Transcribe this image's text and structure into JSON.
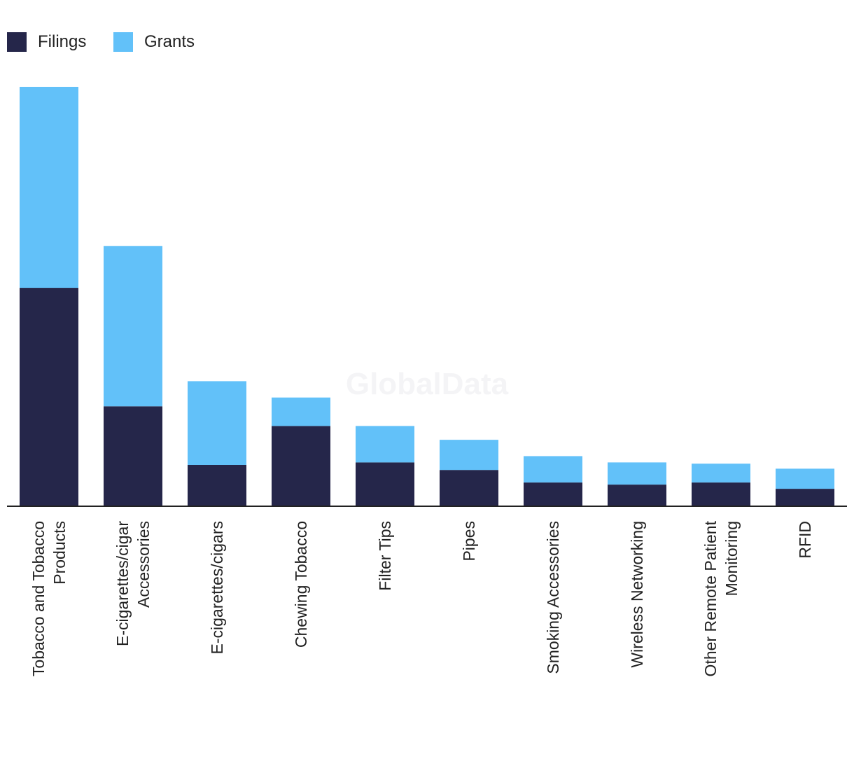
{
  "watermark": "GlobalData",
  "chart_data": {
    "type": "bar",
    "stacked": true,
    "orientation": "vertical",
    "title": "",
    "xlabel": "",
    "ylabel": "",
    "legend_position": "top-left",
    "grid": false,
    "y_axis_shown": false,
    "ylim": [
      0,
      100
    ],
    "categories": [
      "Tobacco and Tobacco Products",
      "E-cigarettes/cigar Accessories",
      "E-cigarettes/cigars",
      "Chewing Tobacco",
      "Filter Tips",
      "Pipes",
      "Smoking Accessories",
      "Wireless Networking",
      "Other Remote Patient Monitoring",
      "RFID"
    ],
    "category_lines": [
      [
        "Tobacco and Tobacco",
        "Products"
      ],
      [
        "E-cigarettes/cigar",
        "Accessories"
      ],
      [
        "E-cigarettes/cigars"
      ],
      [
        "Chewing Tobacco"
      ],
      [
        "Filter Tips"
      ],
      [
        "Pipes"
      ],
      [
        "Smoking Accessories"
      ],
      [
        "Wireless Networking"
      ],
      [
        "Other Remote Patient",
        "Monitoring"
      ],
      [
        "RFID"
      ]
    ],
    "series": [
      {
        "name": "Filings",
        "color": "#25264a",
        "values": [
          52,
          23.7,
          9.7,
          19,
          10.3,
          8.5,
          5.5,
          5,
          5.5,
          4
        ]
      },
      {
        "name": "Grants",
        "color": "#62c1f9",
        "values": [
          48,
          38.3,
          20,
          6.8,
          8.7,
          7.2,
          6.3,
          5.3,
          4.5,
          4.8
        ]
      }
    ]
  }
}
